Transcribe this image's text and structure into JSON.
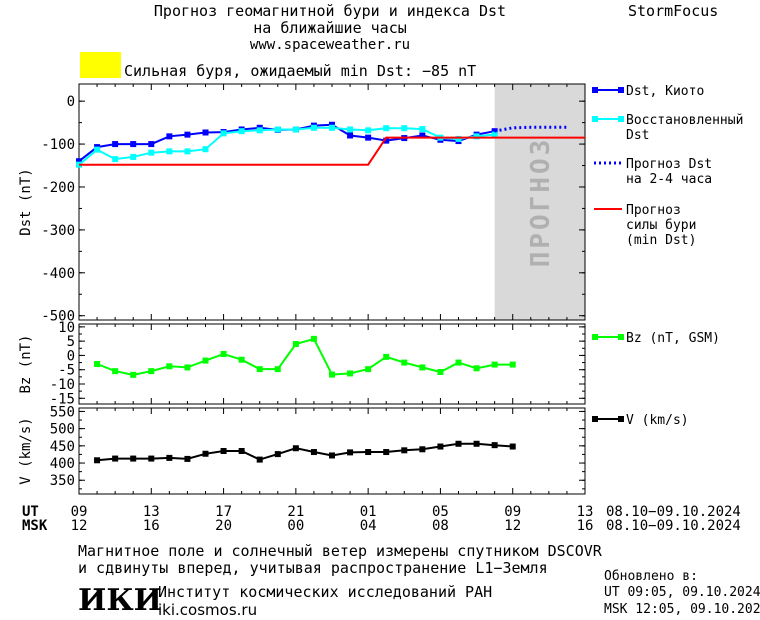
{
  "header": {
    "title_line1": "Прогноз геомагнитной бури и индекса Dst",
    "title_line2": "на ближайшие часы",
    "url": "www.spaceweather.ru",
    "brand": "StormFocus",
    "alert_text": "Сильная буря, ожидаемый min Dst: −85 nT",
    "alert_color": "#ffff00"
  },
  "chart_data": [
    {
      "type": "line",
      "panel": "dst",
      "ylabel": "Dst (nT)",
      "ylim": [
        -510,
        40
      ],
      "yticks": [
        0,
        -100,
        -200,
        -300,
        -400,
        -500
      ],
      "xlim": [
        0,
        28
      ],
      "forecast_label": "ПРОГНОЗ",
      "forecast_region": [
        23,
        28
      ],
      "series": [
        {
          "name": "Dst, Киото",
          "color": "#0000ff",
          "style": "line-square",
          "x": [
            0,
            1,
            2,
            3,
            4,
            5,
            6,
            7,
            8,
            9,
            10,
            11,
            12,
            13,
            14,
            15,
            16,
            17,
            18,
            19,
            20,
            21,
            22,
            23
          ],
          "values": [
            -140,
            -107,
            -100,
            -100,
            -100,
            -82,
            -78,
            -73,
            -72,
            -66,
            -62,
            -67,
            -66,
            -57,
            -55,
            -80,
            -85,
            -92,
            -86,
            -80,
            -90,
            -93,
            -78,
            -70
          ]
        },
        {
          "name": "Восстановленный Dst",
          "color": "#00ffff",
          "style": "line-square",
          "x": [
            0,
            1,
            2,
            3,
            4,
            5,
            6,
            7,
            8,
            9,
            10,
            11,
            12,
            13,
            14,
            15,
            16,
            17,
            18,
            19,
            20,
            21,
            22,
            23
          ],
          "values": [
            -148,
            -113,
            -135,
            -130,
            -120,
            -117,
            -117,
            -112,
            -75,
            -70,
            -68,
            -66,
            -66,
            -62,
            -62,
            -66,
            -68,
            -63,
            -63,
            -65,
            -85,
            -88,
            -82,
            -78
          ]
        },
        {
          "name": "Прогноз Dst на 2-4 часа",
          "color": "#0000ff",
          "style": "dotted",
          "x": [
            23,
            23.5,
            24,
            25,
            26,
            27
          ],
          "values": [
            -70,
            -66,
            -62,
            -61,
            -61,
            -61
          ]
        },
        {
          "name": "Прогноз силы бури (min Dst)",
          "color": "#ff0000",
          "style": "line",
          "x": [
            0,
            16,
            17,
            28
          ],
          "values": [
            -148,
            -148,
            -85,
            -85
          ]
        }
      ]
    },
    {
      "type": "line",
      "panel": "bz",
      "ylabel": "Bz (nT)",
      "ylim": [
        -17,
        11
      ],
      "yticks": [
        10,
        5,
        0,
        -5,
        -10,
        -15
      ],
      "xlim": [
        0,
        28
      ],
      "series": [
        {
          "name": "Bz (nT, GSM)",
          "color": "#00ff00",
          "style": "line-square",
          "x": [
            1,
            2,
            3,
            4,
            5,
            6,
            7,
            8,
            9,
            10,
            11,
            12,
            13,
            14,
            15,
            16,
            17,
            18,
            19,
            20,
            21,
            22,
            23,
            24
          ],
          "values": [
            -3,
            -5.5,
            -6.8,
            -5.5,
            -3.8,
            -4.2,
            -1.8,
            0.5,
            -1.5,
            -4.8,
            -4.8,
            4,
            5.8,
            -6.7,
            -6.3,
            -4.8,
            -0.5,
            -2.5,
            -4.2,
            -5.8,
            -2.5,
            -4.5,
            -3.2,
            -3.2
          ]
        }
      ]
    },
    {
      "type": "line",
      "panel": "v",
      "ylabel": "V (km/s)",
      "ylim": [
        310,
        560
      ],
      "yticks": [
        550,
        500,
        450,
        400,
        350
      ],
      "xlim": [
        0,
        28
      ],
      "series": [
        {
          "name": "V (km/s)",
          "color": "#000000",
          "style": "line-square",
          "x": [
            1,
            2,
            3,
            4,
            5,
            6,
            7,
            8,
            9,
            10,
            11,
            12,
            13,
            14,
            15,
            16,
            17,
            18,
            19,
            20,
            21,
            22,
            23,
            24
          ],
          "values": [
            408,
            413,
            413,
            413,
            415,
            412,
            427,
            435,
            435,
            410,
            426,
            443,
            432,
            422,
            431,
            432,
            432,
            437,
            440,
            448,
            456,
            456,
            452,
            448
          ]
        }
      ]
    }
  ],
  "axis_time": {
    "ut_label": "UT",
    "msk_label": "MSK",
    "ut_ticks": [
      "09",
      "13",
      "17",
      "21",
      "01",
      "05",
      "09",
      "13"
    ],
    "msk_ticks": [
      "12",
      "16",
      "20",
      "00",
      "04",
      "08",
      "12",
      "16"
    ],
    "ut_range": "08.10−09.10.2024",
    "msk_range": "08.10−09.10.2024"
  },
  "legend": {
    "dst_kyoto": "Dst, Киото",
    "dst_restored_1": "Восстановленный",
    "dst_restored_2": "Dst",
    "forecast_1": "Прогноз Dst",
    "forecast_2": "на 2-4 часа",
    "storm_1": "Прогноз",
    "storm_2": "силы бури",
    "storm_3": "(min Dst)",
    "bz": "Bz (nT, GSM)",
    "v": "V (km/s)"
  },
  "footer": {
    "note_line1": "Магнитное поле и солнечный ветер измерены спутником DSCOVR",
    "note_line2": "и сдвинуты вперед, учитывая распространение L1−Земля",
    "institute": "Институт космических исследований РАН",
    "institute_url": "iki.cosmos.ru",
    "logo_text": "ИКИ",
    "updated_label": "Обновлено в:",
    "updated_ut": "UT   09:05, 09.10.2024",
    "updated_msk": "MSK 12:05, 09.10.2024"
  }
}
